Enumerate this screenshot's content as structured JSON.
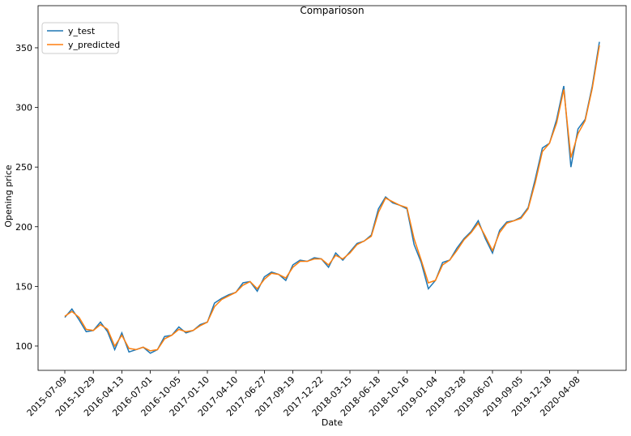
{
  "chart_data": {
    "type": "line",
    "title": "Comparioson",
    "x_label": "Date",
    "y_label": "Opening price",
    "categories": [
      "2015-07-09",
      null,
      null,
      null,
      "2015-10-29",
      null,
      null,
      null,
      "2016-04-13",
      null,
      null,
      null,
      "2016-07-01",
      null,
      null,
      null,
      "2016-10-05",
      null,
      null,
      null,
      "2017-01-10",
      null,
      null,
      null,
      "2017-04-10",
      null,
      null,
      null,
      "2017-06-27",
      null,
      null,
      null,
      "2017-09-19",
      null,
      null,
      null,
      "2017-12-22",
      null,
      null,
      null,
      "2018-03-15",
      null,
      null,
      null,
      "2018-06-18",
      null,
      null,
      null,
      "2018-10-16",
      null,
      null,
      null,
      "2019-01-04",
      null,
      null,
      null,
      "2019-03-28",
      null,
      null,
      null,
      "2019-06-07",
      null,
      null,
      null,
      "2019-09-05",
      null,
      null,
      null,
      "2019-12-18",
      null,
      null,
      null,
      "2020-04-08",
      null,
      null,
      null
    ],
    "series": [
      {
        "name": "y_test",
        "color": "#1f77b4",
        "values": [
          124,
          131,
          122,
          112,
          113,
          120,
          112,
          97,
          111,
          95,
          97,
          99,
          94,
          97,
          108,
          109,
          116,
          111,
          113,
          118,
          120,
          136,
          140,
          143,
          145,
          153,
          154,
          146,
          158,
          162,
          160,
          155,
          168,
          172,
          171,
          174,
          173,
          166,
          178,
          172,
          179,
          186,
          188,
          193,
          215,
          225,
          220,
          218,
          215,
          185,
          170,
          148,
          155,
          170,
          172,
          182,
          190,
          196,
          205,
          190,
          178,
          197,
          204,
          205,
          208,
          216,
          240,
          266,
          270,
          290,
          318,
          250,
          282,
          290,
          318,
          355
        ]
      },
      {
        "name": "y_predicted",
        "color": "#ff7f0e",
        "values": [
          125,
          129,
          124,
          114,
          113,
          118,
          114,
          100,
          109,
          98,
          97,
          99,
          96,
          97,
          106,
          109,
          114,
          112,
          113,
          117,
          120,
          133,
          139,
          142,
          145,
          151,
          154,
          148,
          156,
          161,
          160,
          157,
          166,
          171,
          171,
          173,
          173,
          168,
          176,
          173,
          178,
          185,
          188,
          192,
          212,
          224,
          221,
          218,
          216,
          190,
          172,
          153,
          155,
          168,
          172,
          180,
          189,
          195,
          203,
          192,
          180,
          195,
          203,
          205,
          207,
          215,
          237,
          263,
          270,
          287,
          315,
          258,
          278,
          289,
          316,
          352
        ]
      }
    ],
    "ylim": [
      79.6,
      385.3
    ],
    "yticks": [
      100,
      150,
      200,
      250,
      300,
      350
    ],
    "legend": "upper left"
  }
}
